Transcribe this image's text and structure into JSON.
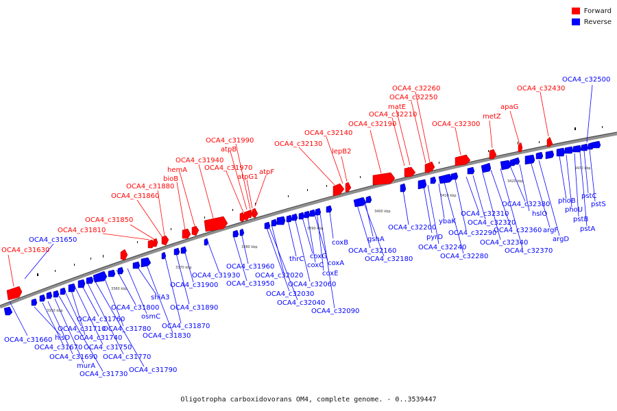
{
  "legend": {
    "forward_label": "Forward",
    "reverse_label": "Reverse",
    "forward_color": "#ff0000",
    "reverse_color": "#0000ff"
  },
  "footer": "Oligotropha carboxidovorans OM4, complete genome. - 0..3539447",
  "ticks": [
    "3350 kbp",
    "3360 kbp",
    "3370 kbp",
    "3380 kbp",
    "3390 kbp",
    "3400 kbp",
    "3410 kbp",
    "3420 kbp",
    "3430 kbp"
  ],
  "forward_labels": [
    "OCA4_c31630",
    "OCA4_c31810",
    "OCA4_c31850",
    "OCA4_c31860",
    "OCA4_c31880",
    "bioB",
    "hemA",
    "OCA4_c31940",
    "OCA4_c31970",
    "atpB",
    "OCA4_c31990",
    "atpG1",
    "atpF",
    "OCA4_c32130",
    "OCA4_c32140",
    "lepB2",
    "OCA4_c32190",
    "OCA4_c32210",
    "matE",
    "OCA4_c32250",
    "OCA4_c32260",
    "OCA4_c32300",
    "metZ",
    "apaG",
    "OCA4_c32430"
  ],
  "reverse_labels": [
    "OCA4_c31650",
    "OCA4_c31660",
    "hisD",
    "OCA4_c31670",
    "OCA4_c31690",
    "murA",
    "OCA4_c31730",
    "OCA4_c31710",
    "OCA4_c31740",
    "OCA4_c31750",
    "OCA4_c31760",
    "OCA4_c31770",
    "OCA4_c31790",
    "OCA4_c31780",
    "OCA4_c31800",
    "osmC",
    "shiA3",
    "OCA4_c31830",
    "OCA4_c31870",
    "OCA4_c31890",
    "OCA4_c31900",
    "OCA4_c31930",
    "OCA4_c31950",
    "OCA4_c31960",
    "OCA4_c32020",
    "OCA4_c32030",
    "OCA4_c32040",
    "thrC",
    "OCA4_c32060",
    "coxG",
    "coxC",
    "coxA",
    "coxE",
    "OCA4_c32090",
    "coxB",
    "gshA",
    "OCA4_c32160",
    "OCA4_c32180",
    "OCA4_c32200",
    "pyrD",
    "OCA4_c32240",
    "ybaK",
    "OCA4_c32280",
    "OCA4_c32290",
    "OCA4_c32310",
    "OCA4_c32320",
    "OCA4_c32340",
    "OCA4_c32360",
    "OCA4_c32370",
    "OCA4_c32380",
    "hslO",
    "argF",
    "argD",
    "phoB",
    "phoU",
    "pstB",
    "pstA",
    "pstC",
    "pstS",
    "OCA4_c32500"
  ]
}
